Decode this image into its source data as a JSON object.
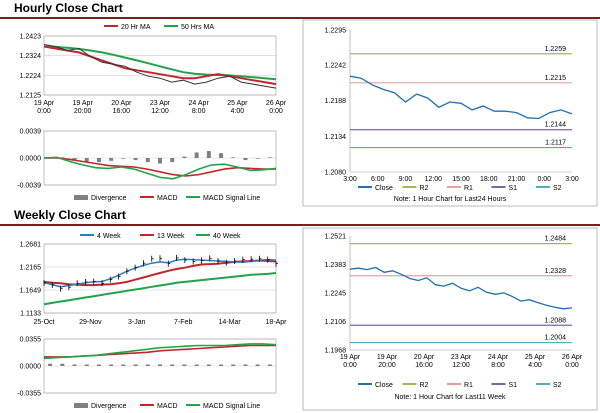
{
  "sections": {
    "hourly_title": "Hourly Close Chart",
    "weekly_title": "Weekly Close Chart"
  },
  "colors": {
    "rule": "#7a1f1f",
    "ma20": "#c0272d",
    "ma50": "#22a34a",
    "price": "#333333",
    "close": "#1f6fb2",
    "r2": "#9bbb59",
    "r1": "#e6a0a0",
    "s1": "#8064a2",
    "s2": "#4bacc6",
    "ma4": "#2a7fc0",
    "ma13": "#c0272d",
    "ma40": "#22a34a",
    "divergence": "#808080",
    "macd": "#22a34a",
    "macd_signal": "#c0272d"
  },
  "chart_data": [
    {
      "id": "hourly_close",
      "type": "line",
      "title": "",
      "legend": [
        "20 Hr MA",
        "50 Hrs MA"
      ],
      "legend_placement": "top",
      "x_ticks": [
        "19 Apr\n0:00",
        "19 Apr\n20:00",
        "20 Apr\n16:00",
        "23 Apr\n12:00",
        "24 Apr\n8:00",
        "25 Apr\n4:00",
        "26 Apr\n0:00"
      ],
      "y_ticks": [
        1.2423,
        1.2324,
        1.2224,
        1.2125
      ],
      "ylim": [
        1.2125,
        1.2423
      ],
      "series": [
        {
          "name": "Price",
          "values": [
            1.238,
            1.237,
            1.235,
            1.236,
            1.232,
            1.229,
            1.228,
            1.227,
            1.224,
            1.222,
            1.221,
            1.219,
            1.22,
            1.218,
            1.219,
            1.221,
            1.222,
            1.219,
            1.218,
            1.217,
            1.216
          ]
        },
        {
          "name": "20 Hr MA",
          "values": [
            1.237,
            1.236,
            1.235,
            1.234,
            1.232,
            1.23,
            1.228,
            1.226,
            1.225,
            1.224,
            1.223,
            1.222,
            1.221,
            1.221,
            1.222,
            1.223,
            1.222,
            1.221,
            1.22,
            1.219,
            1.218
          ]
        },
        {
          "name": "50 Hrs MA",
          "values": [
            1.237,
            1.2368,
            1.2364,
            1.2358,
            1.235,
            1.234,
            1.2328,
            1.2314,
            1.23,
            1.2285,
            1.227,
            1.2255,
            1.224,
            1.2232,
            1.2228,
            1.2226,
            1.2224,
            1.222,
            1.2215,
            1.221,
            1.2205
          ]
        }
      ]
    },
    {
      "id": "hourly_macd",
      "type": "line",
      "legend": [
        "Divergence",
        "MACD",
        "MACD Signal Line"
      ],
      "legend_placement": "bottom",
      "y_ticks": [
        "0.0039",
        "0.0000",
        "-0.0039"
      ],
      "ylim": [
        -0.0039,
        0.0039
      ],
      "series": [
        {
          "name": "MACD",
          "values": [
            0.0,
            0.0001,
            -0.0005,
            -0.001,
            -0.0014,
            -0.0015,
            -0.0013,
            -0.0016,
            -0.0022,
            -0.0028,
            -0.003,
            -0.0024,
            -0.0016,
            -0.001,
            -0.0009,
            -0.0013,
            -0.0018,
            -0.0017,
            -0.0015
          ]
        },
        {
          "name": "MACD Signal Line",
          "values": [
            0.0,
            0.0,
            -0.0002,
            -0.0005,
            -0.0008,
            -0.0011,
            -0.0012,
            -0.0013,
            -0.0016,
            -0.002,
            -0.0024,
            -0.0026,
            -0.0024,
            -0.002,
            -0.0016,
            -0.0014,
            -0.0015,
            -0.0016,
            -0.0016
          ]
        },
        {
          "name": "Divergence",
          "values": [
            0.0,
            0.0001,
            -0.0003,
            -0.0005,
            -0.0006,
            -0.0004,
            -0.0001,
            -0.0003,
            -0.0006,
            -0.0008,
            -0.0006,
            0.0002,
            0.0008,
            0.001,
            0.0007,
            0.0001,
            -0.0003,
            -0.0001,
            0.0001
          ]
        }
      ]
    },
    {
      "id": "hourly_pivot",
      "type": "line",
      "x_ticks": [
        "3:00",
        "6:00",
        "9:00",
        "12:00",
        "15:00",
        "18:00",
        "21:00",
        "0:00",
        "3:00"
      ],
      "y_ticks": [
        1.2295,
        1.2242,
        1.2188,
        1.2134,
        1.208
      ],
      "ylim": [
        1.208,
        1.2295
      ],
      "levels": [
        {
          "name": "R2",
          "value": 1.2259,
          "label": "1.2259"
        },
        {
          "name": "R1",
          "value": 1.2215,
          "label": "1.2215"
        },
        {
          "name": "S1",
          "value": 1.2144,
          "label": "1.2144"
        },
        {
          "name": "S2",
          "value": 1.2117,
          "label": "1.2117"
        }
      ],
      "series": [
        {
          "name": "Close",
          "values": [
            1.2225,
            1.2222,
            1.2212,
            1.2205,
            1.22,
            1.2186,
            1.2198,
            1.2192,
            1.2178,
            1.2186,
            1.2184,
            1.2174,
            1.218,
            1.2172,
            1.2172,
            1.217,
            1.2162,
            1.2161,
            1.217,
            1.2174,
            1.2168
          ]
        }
      ],
      "legend": [
        "Close",
        "R2",
        "R1",
        "S1",
        "S2"
      ],
      "note": "Note: 1 Hour Chart for Last24 Hours"
    },
    {
      "id": "weekly_close",
      "type": "line",
      "legend": [
        "4 Week",
        "13 Week",
        "40 Week"
      ],
      "legend_placement": "top",
      "x_ticks": [
        "25-Oct",
        "29-Nov",
        "3-Jan",
        "7-Feb",
        "14-Mar",
        "18-Apr"
      ],
      "y_ticks": [
        1.2681,
        1.2165,
        1.1649,
        1.1133
      ],
      "ylim": [
        1.1133,
        1.2681
      ],
      "series": [
        {
          "name": "4 Week",
          "values": [
            1.181,
            1.177,
            1.172,
            1.175,
            1.178,
            1.181,
            1.183,
            1.184,
            1.19,
            1.198,
            1.207,
            1.214,
            1.22,
            1.225,
            1.228,
            1.226,
            1.232,
            1.234,
            1.233,
            1.232,
            1.231,
            1.23,
            1.229,
            1.228,
            1.227,
            1.229,
            1.232,
            1.233,
            1.232
          ]
        },
        {
          "name": "13 Week",
          "values": [
            1.183,
            1.181,
            1.18,
            1.178,
            1.177,
            1.176,
            1.176,
            1.177,
            1.178,
            1.18,
            1.183,
            1.188,
            1.193,
            1.198,
            1.203,
            1.208,
            1.212,
            1.215,
            1.219,
            1.222,
            1.223,
            1.224,
            1.226,
            1.228,
            1.229,
            1.23,
            1.231,
            1.23,
            1.229
          ]
        },
        {
          "name": "40 Week",
          "values": [
            1.133,
            1.136,
            1.139,
            1.142,
            1.145,
            1.148,
            1.151,
            1.154,
            1.157,
            1.16,
            1.163,
            1.166,
            1.169,
            1.172,
            1.175,
            1.178,
            1.181,
            1.183,
            1.185,
            1.187,
            1.189,
            1.191,
            1.193,
            1.195,
            1.197,
            1.199,
            1.2,
            1.201,
            1.203
          ]
        },
        {
          "name": "Price",
          "values": [
            1.181,
            1.176,
            1.168,
            1.171,
            1.18,
            1.183,
            1.184,
            1.18,
            1.188,
            1.195,
            1.207,
            1.215,
            1.225,
            1.235,
            1.236,
            1.224,
            1.237,
            1.232,
            1.229,
            1.231,
            1.236,
            1.23,
            1.226,
            1.23,
            1.233,
            1.234,
            1.235,
            1.233,
            1.224
          ]
        }
      ]
    },
    {
      "id": "weekly_macd",
      "type": "line",
      "legend": [
        "Divergence",
        "MACD",
        "MACD Signal Line"
      ],
      "legend_placement": "bottom",
      "y_ticks": [
        "0.0355",
        "0.0000",
        "-0.0355"
      ],
      "ylim": [
        -0.0355,
        0.0355
      ],
      "series": [
        {
          "name": "MACD",
          "values": [
            0.01,
            0.011,
            0.012,
            0.013,
            0.014,
            0.016,
            0.018,
            0.02,
            0.022,
            0.024,
            0.025,
            0.026,
            0.027,
            0.027,
            0.027,
            0.028,
            0.029,
            0.029,
            0.028
          ]
        },
        {
          "name": "MACD Signal Line",
          "values": [
            0.012,
            0.012,
            0.012,
            0.013,
            0.014,
            0.015,
            0.016,
            0.017,
            0.018,
            0.02,
            0.021,
            0.022,
            0.023,
            0.024,
            0.025,
            0.026,
            0.027,
            0.027,
            0.027
          ]
        },
        {
          "name": "Divergence",
          "values": [
            0.003,
            0.003,
            0.002,
            0.002,
            0.002,
            0.002,
            0.002,
            0.002,
            0.002,
            0.002,
            0.002,
            0.002,
            0.002,
            0.002,
            0.002,
            0.002,
            0.002,
            0.002,
            0.002
          ]
        }
      ]
    },
    {
      "id": "weekly_pivot",
      "type": "line",
      "x_ticks": [
        "19 Apr\n0:00",
        "19 Apr\n20:00",
        "20 Apr\n16:00",
        "23 Apr\n12:00",
        "24 Apr\n8:00",
        "25 Apr\n4:00",
        "26 Apr\n0:00"
      ],
      "y_ticks": [
        1.2521,
        1.2383,
        1.2245,
        1.2106,
        1.1968
      ],
      "ylim": [
        1.1968,
        1.2521
      ],
      "levels": [
        {
          "name": "R2",
          "value": 1.2484,
          "label": "1.2484"
        },
        {
          "name": "R1",
          "value": 1.2328,
          "label": "1.2328"
        },
        {
          "name": "S1",
          "value": 1.2088,
          "label": "1.2088"
        },
        {
          "name": "S2",
          "value": 1.2004,
          "label": "1.2004"
        }
      ],
      "series": [
        {
          "name": "Close",
          "values": [
            1.236,
            1.2365,
            1.2358,
            1.2368,
            1.2345,
            1.2352,
            1.2335,
            1.2315,
            1.2305,
            1.2318,
            1.2285,
            1.2278,
            1.2292,
            1.2268,
            1.2255,
            1.2272,
            1.2248,
            1.2238,
            1.2245,
            1.2228,
            1.2205,
            1.2212,
            1.2198,
            1.2185,
            1.2175,
            1.2168,
            1.2172
          ]
        }
      ],
      "legend": [
        "Close",
        "R2",
        "R1",
        "S1",
        "S2"
      ],
      "note": "Note: 1 Hour Chart for Last11 Week"
    }
  ]
}
